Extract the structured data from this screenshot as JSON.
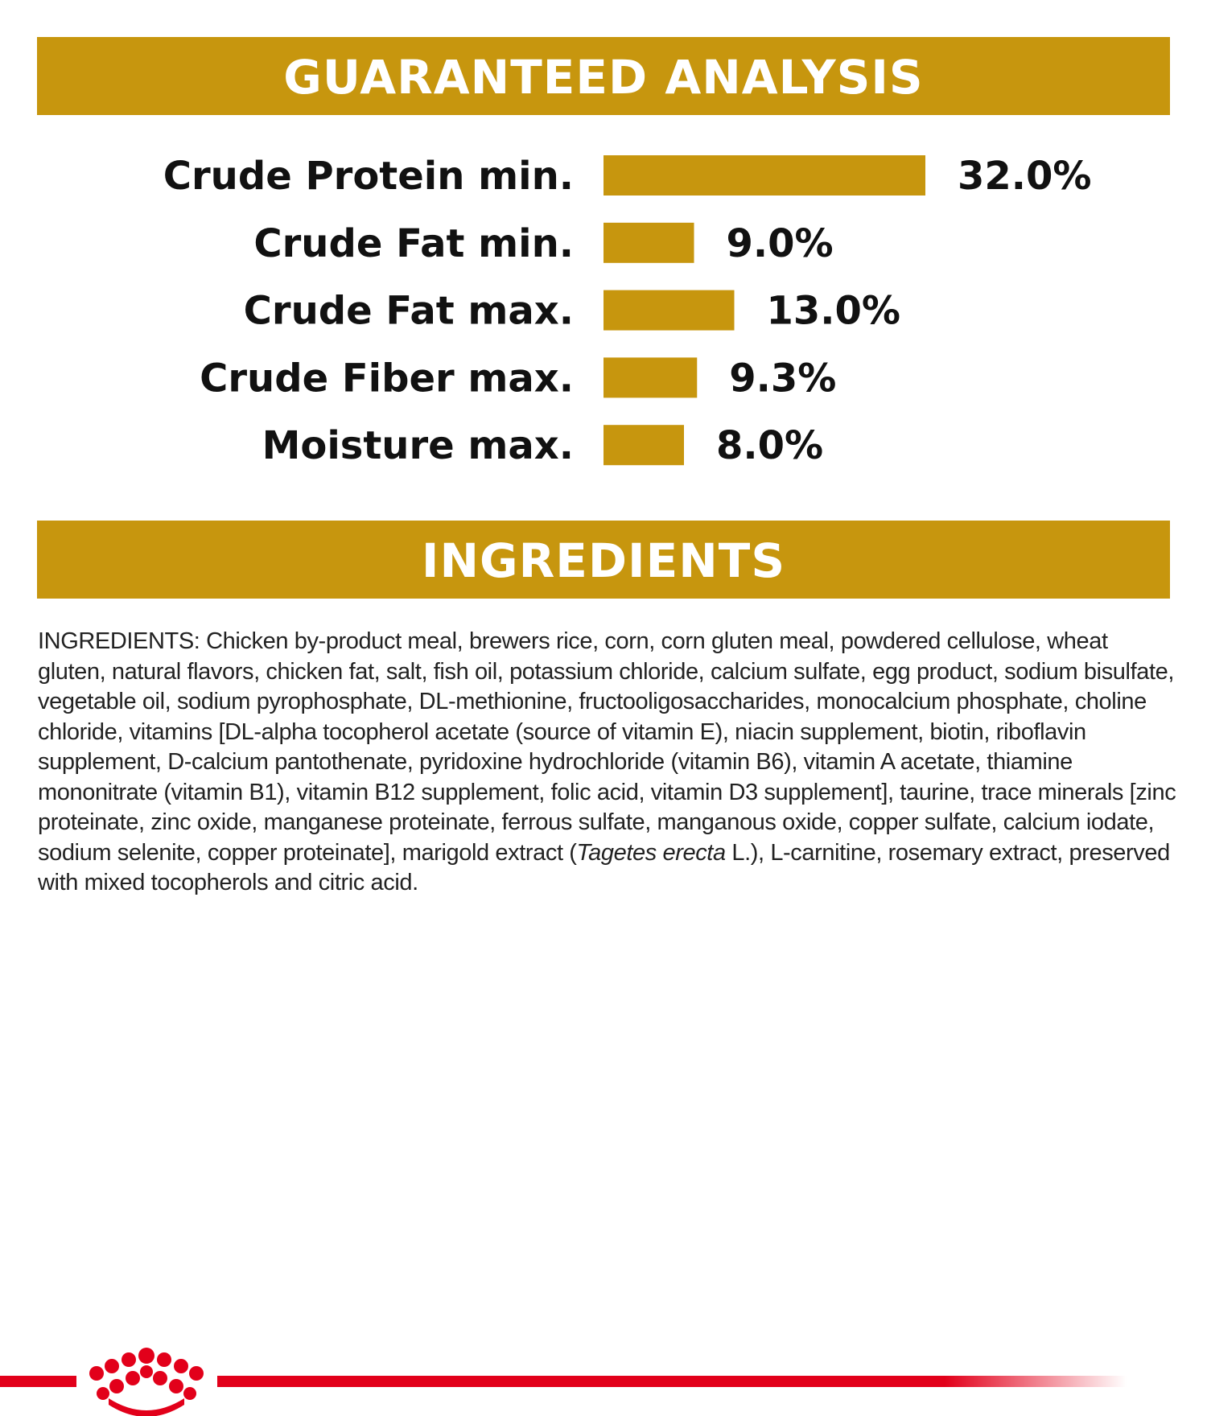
{
  "chart_data": {
    "type": "bar",
    "orientation": "horizontal",
    "title": "GUARANTEED ANALYSIS",
    "categories": [
      "Crude Protein min.",
      "Crude Fat min.",
      "Crude Fat max.",
      "Crude Fiber max.",
      "Moisture max."
    ],
    "values": [
      32.0,
      9.0,
      13.0,
      9.3,
      8.0
    ],
    "value_labels": [
      "32.0%",
      "9.0%",
      "13.0%",
      "9.3%",
      "8.0%"
    ],
    "color": "#c7960e"
  },
  "ingredients": {
    "heading": "INGREDIENTS",
    "before": "INGREDIENTS: Chicken by-product meal, brewers rice, corn, corn gluten meal, powdered cellulose, wheat gluten, natural flavors, chicken fat, salt, fish oil, potassium chloride, calcium sulfate, egg product, sodium bisulfate, vegetable oil, sodium pyrophosphate, DL-methionine, fructooligosaccharides, monocalcium phosphate, choline chloride, vitamins [DL-alpha tocopherol acetate (source of vitamin E), niacin supplement, biotin, riboflavin supplement, D-calcium pantothenate, pyridoxine hydrochloride (vitamin B6), vitamin A acetate, thiamine mononitrate (vitamin B1), vitamin B12 supplement, folic acid, vitamin D3 supplement], taurine, trace minerals [zinc proteinate, zinc oxide, manganese proteinate, ferrous sulfate, manganous oxide, copper sulfate, calcium iodate, sodium selenite, copper proteinate], marigold extract (",
    "italic": "Tagetes erecta",
    "after": " L.), L-carnitine, rosemary extract, preserved with mixed tocopherols and citric acid."
  }
}
